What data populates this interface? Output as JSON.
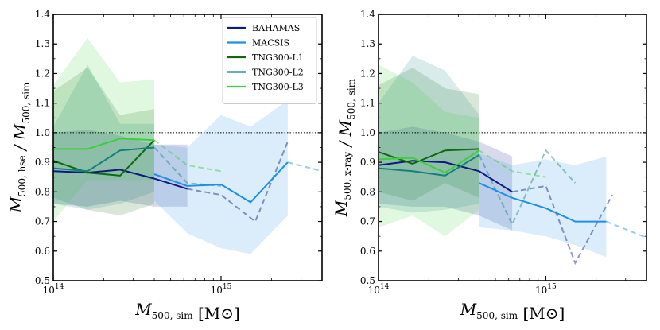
{
  "chart_data": [
    {
      "type": "line",
      "xscale": "log",
      "xlim": [
        100000000000000.0,
        4000000000000000.0
      ],
      "ylim": [
        0.5,
        1.4
      ],
      "ylabel": "M_{500, hse} / M_{500, sim}",
      "xlabel": "M_{500, sim}  [M_⊙]",
      "xtick_labels": [
        "10^14",
        "10^15"
      ],
      "ytick_labels": [
        "0.5",
        "0.6",
        "0.7",
        "0.8",
        "0.9",
        "1.0",
        "1.1",
        "1.2",
        "1.3",
        "1.4"
      ],
      "reference_line": 1.0,
      "legend": {
        "location": "top-right",
        "entries": [
          "BAHAMAS",
          "MACSIS",
          "TNG300-L1",
          "TNG300-L2",
          "TNG300-L3"
        ]
      },
      "series": [
        {
          "name": "BAHAMAS",
          "color": "#0d1a80",
          "solid": {
            "x": [
              100000000000000.0,
              160000000000000.0,
              250000000000000.0,
              400000000000000.0,
              630000000000000.0
            ],
            "y": [
              0.87,
              0.865,
              0.875,
              0.845,
              0.81
            ]
          },
          "dashed": {
            "x": [
              630000000000000.0,
              1000000000000000.0,
              1600000000000000.0,
              2500000000000000.0
            ],
            "y": [
              0.81,
              0.79,
              0.7,
              0.97
            ]
          },
          "band": {
            "x": [
              100000000000000.0,
              160000000000000.0,
              250000000000000.0,
              400000000000000.0,
              630000000000000.0
            ],
            "lo": [
              0.76,
              0.75,
              0.77,
              0.75,
              0.75
            ],
            "hi": [
              1.0,
              1.01,
              0.99,
              0.96,
              0.96
            ]
          }
        },
        {
          "name": "MACSIS",
          "color": "#1e8fe6",
          "solid": {
            "x": [
              400000000000000.0,
              630000000000000.0,
              1000000000000000.0,
              1500000000000000.0,
              2500000000000000.0
            ],
            "y": [
              0.86,
              0.82,
              0.825,
              0.765,
              0.9
            ]
          },
          "dashed": {
            "x": [
              2500000000000000.0,
              4000000000000000.0
            ],
            "y": [
              0.9,
              0.87
            ]
          },
          "band": {
            "x": [
              400000000000000.0,
              630000000000000.0,
              1000000000000000.0,
              1500000000000000.0,
              2500000000000000.0
            ],
            "lo": [
              0.77,
              0.66,
              0.61,
              0.59,
              0.72
            ],
            "hi": [
              0.96,
              0.95,
              1.06,
              1.02,
              1.11
            ]
          }
        },
        {
          "name": "TNG300-L1",
          "color": "#0d6b0d",
          "solid": {
            "x": [
              100000000000000.0,
              160000000000000.0,
              250000000000000.0,
              400000000000000.0
            ],
            "y": [
              0.905,
              0.865,
              0.855,
              0.975
            ]
          },
          "dashed": {
            "x": [],
            "y": []
          },
          "band": {
            "x": [
              100000000000000.0,
              160000000000000.0,
              250000000000000.0,
              400000000000000.0
            ],
            "lo": [
              0.78,
              0.74,
              0.72,
              0.76
            ],
            "hi": [
              1.14,
              1.22,
              1.06,
              1.08
            ]
          }
        },
        {
          "name": "TNG300-L2",
          "color": "#138080",
          "solid": {
            "x": [
              100000000000000.0,
              160000000000000.0,
              250000000000000.0,
              400000000000000.0
            ],
            "y": [
              0.88,
              0.87,
              0.94,
              0.95
            ]
          },
          "dashed": {
            "x": [
              400000000000000.0,
              630000000000000.0,
              1000000000000000.0
            ],
            "y": [
              0.95,
              0.83,
              0.82
            ]
          },
          "band": {
            "x": [
              100000000000000.0,
              160000000000000.0,
              250000000000000.0,
              400000000000000.0
            ],
            "lo": [
              0.76,
              0.74,
              0.76,
              0.8
            ],
            "hi": [
              1.02,
              1.23,
              1.03,
              1.03
            ]
          }
        },
        {
          "name": "TNG300-L3",
          "color": "#3ccf3c",
          "solid": {
            "x": [
              100000000000000.0,
              160000000000000.0,
              250000000000000.0,
              400000000000000.0
            ],
            "y": [
              0.945,
              0.945,
              0.98,
              0.975
            ]
          },
          "dashed": {
            "x": [
              400000000000000.0,
              630000000000000.0,
              1000000000000000.0
            ],
            "y": [
              0.975,
              0.89,
              0.87
            ]
          },
          "band": {
            "x": [
              100000000000000.0,
              160000000000000.0,
              250000000000000.0,
              400000000000000.0
            ],
            "lo": [
              0.7,
              0.84,
              0.84,
              0.84
            ],
            "hi": [
              1.16,
              1.32,
              1.17,
              1.18
            ]
          }
        }
      ]
    },
    {
      "type": "line",
      "xscale": "log",
      "xlim": [
        100000000000000.0,
        4000000000000000.0
      ],
      "ylim": [
        0.5,
        1.4
      ],
      "ylabel": "M_{500, x-ray} / M_{500, sim}",
      "xlabel": "M_{500, sim}  [M_⊙]",
      "xtick_labels": [
        "10^14",
        "10^15"
      ],
      "ytick_labels": [
        "0.5",
        "0.6",
        "0.7",
        "0.8",
        "0.9",
        "1.0",
        "1.1",
        "1.2",
        "1.3",
        "1.4"
      ],
      "reference_line": 1.0,
      "series": [
        {
          "name": "BAHAMAS",
          "color": "#0d1a80",
          "solid": {
            "x": [
              100000000000000.0,
              160000000000000.0,
              250000000000000.0,
              400000000000000.0,
              630000000000000.0
            ],
            "y": [
              0.89,
              0.905,
              0.9,
              0.87,
              0.8
            ]
          },
          "dashed": {
            "x": [
              630000000000000.0,
              1000000000000000.0,
              1500000000000000.0,
              2500000000000000.0
            ],
            "y": [
              0.8,
              0.82,
              0.56,
              0.79
            ]
          },
          "band": {
            "x": [
              100000000000000.0,
              160000000000000.0,
              250000000000000.0,
              400000000000000.0,
              630000000000000.0
            ],
            "lo": [
              0.76,
              0.75,
              0.75,
              0.72,
              0.67
            ],
            "hi": [
              1.0,
              1.02,
              1.0,
              0.97,
              0.92
            ]
          }
        },
        {
          "name": "MACSIS",
          "color": "#1e8fe6",
          "solid": {
            "x": [
              400000000000000.0,
              630000000000000.0,
              1000000000000000.0,
              1500000000000000.0,
              2300000000000000.0
            ],
            "y": [
              0.83,
              0.78,
              0.745,
              0.7,
              0.7
            ]
          },
          "dashed": {
            "x": [
              2300000000000000.0,
              4000000000000000.0
            ],
            "y": [
              0.7,
              0.645
            ]
          },
          "band": {
            "x": [
              400000000000000.0,
              630000000000000.0,
              1000000000000000.0,
              1500000000000000.0,
              2300000000000000.0
            ],
            "lo": [
              0.68,
              0.67,
              0.65,
              0.62,
              0.58
            ],
            "hi": [
              0.93,
              0.89,
              0.91,
              0.89,
              0.92
            ]
          }
        },
        {
          "name": "TNG300-L1",
          "color": "#0d6b0d",
          "solid": {
            "x": [
              100000000000000.0,
              160000000000000.0,
              250000000000000.0,
              400000000000000.0
            ],
            "y": [
              0.935,
              0.895,
              0.94,
              0.945
            ]
          },
          "dashed": {
            "x": [],
            "y": []
          },
          "band": {
            "x": [
              100000000000000.0,
              160000000000000.0,
              250000000000000.0,
              400000000000000.0
            ],
            "lo": [
              0.8,
              0.77,
              0.83,
              0.78
            ],
            "hi": [
              1.16,
              1.22,
              1.15,
              1.13
            ]
          }
        },
        {
          "name": "TNG300-L2",
          "color": "#138080",
          "solid": {
            "x": [
              100000000000000.0,
              160000000000000.0,
              250000000000000.0,
              400000000000000.0
            ],
            "y": [
              0.88,
              0.87,
              0.855,
              0.925
            ]
          },
          "dashed": {
            "x": [
              400000000000000.0,
              630000000000000.0,
              1000000000000000.0,
              1500000000000000.0
            ],
            "y": [
              0.925,
              0.69,
              0.94,
              0.83
            ]
          },
          "band": {
            "x": [
              100000000000000.0,
              160000000000000.0,
              250000000000000.0,
              400000000000000.0
            ],
            "lo": [
              0.75,
              0.73,
              0.74,
              0.76
            ],
            "hi": [
              1.1,
              1.26,
              1.21,
              1.06
            ]
          }
        },
        {
          "name": "TNG300-L3",
          "color": "#3ccf3c",
          "solid": {
            "x": [
              100000000000000.0,
              160000000000000.0,
              250000000000000.0,
              400000000000000.0
            ],
            "y": [
              0.91,
              0.915,
              0.865,
              0.94
            ]
          },
          "dashed": {
            "x": [
              400000000000000.0,
              630000000000000.0,
              1000000000000000.0
            ],
            "y": [
              0.94,
              0.87,
              0.85
            ]
          },
          "band": {
            "x": [
              100000000000000.0,
              160000000000000.0,
              250000000000000.0,
              400000000000000.0
            ],
            "lo": [
              0.68,
              0.72,
              0.65,
              0.74
            ],
            "hi": [
              1.23,
              1.17,
              1.07,
              1.05
            ]
          }
        }
      ]
    }
  ]
}
